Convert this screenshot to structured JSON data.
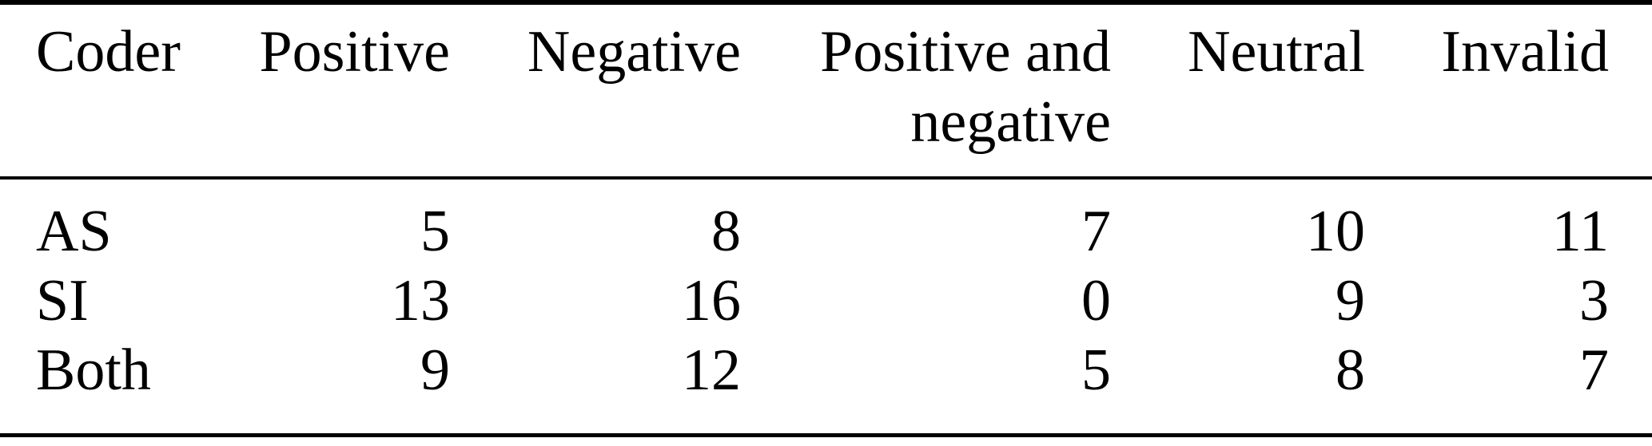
{
  "table": {
    "columns": [
      "Coder",
      "Positive",
      "Negative",
      "Positive and negative",
      "Neutral",
      "Invalid"
    ],
    "rows": [
      {
        "coder": "AS",
        "values": [
          5,
          8,
          7,
          10,
          11
        ]
      },
      {
        "coder": "SI",
        "values": [
          13,
          16,
          0,
          9,
          3
        ]
      },
      {
        "coder": "Both",
        "values": [
          9,
          12,
          5,
          8,
          7
        ]
      }
    ],
    "colors": {
      "text": "#000000",
      "rule": "#000000",
      "background": "#ffffff"
    }
  }
}
